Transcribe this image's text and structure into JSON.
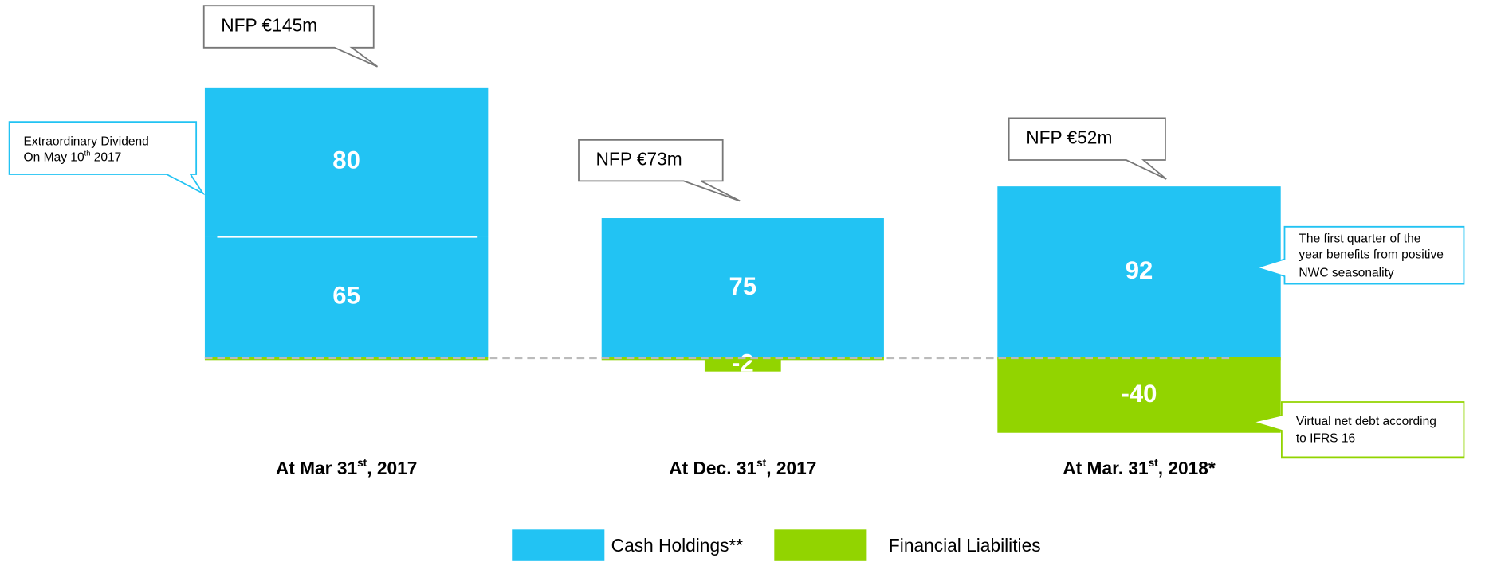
{
  "chart_data": {
    "type": "bar",
    "stacked": true,
    "categories": [
      "At Mar 31st, 2017",
      "At Dec. 31st, 2017",
      "At Mar. 31st, 2018*"
    ],
    "series": [
      {
        "name": "Cash Holdings**",
        "color": "#22c3f3",
        "values": [
          65,
          75,
          92
        ]
      },
      {
        "color": "#22c3f3",
        "values": [
          80,
          null,
          null
        ]
      },
      {
        "name": "Financial Liabilities",
        "color": "#92d400",
        "values": [
          null,
          -2,
          -40
        ]
      }
    ],
    "callouts": [
      "NFP €145m",
      "NFP €73m",
      "NFP €52m"
    ],
    "notes": [
      {
        "lines": [
          "Extraordinary Dividend",
          "On May 10th 2017"
        ],
        "color": "#22c3f3"
      },
      {
        "lines": [
          "The first quarter of the",
          "year benefits from positive",
          "NWC seasonality"
        ],
        "color": "#22c3f3"
      },
      {
        "lines": [
          "Virtual net debt according",
          "to IFRS 16"
        ],
        "color": "#92d400"
      }
    ]
  }
}
